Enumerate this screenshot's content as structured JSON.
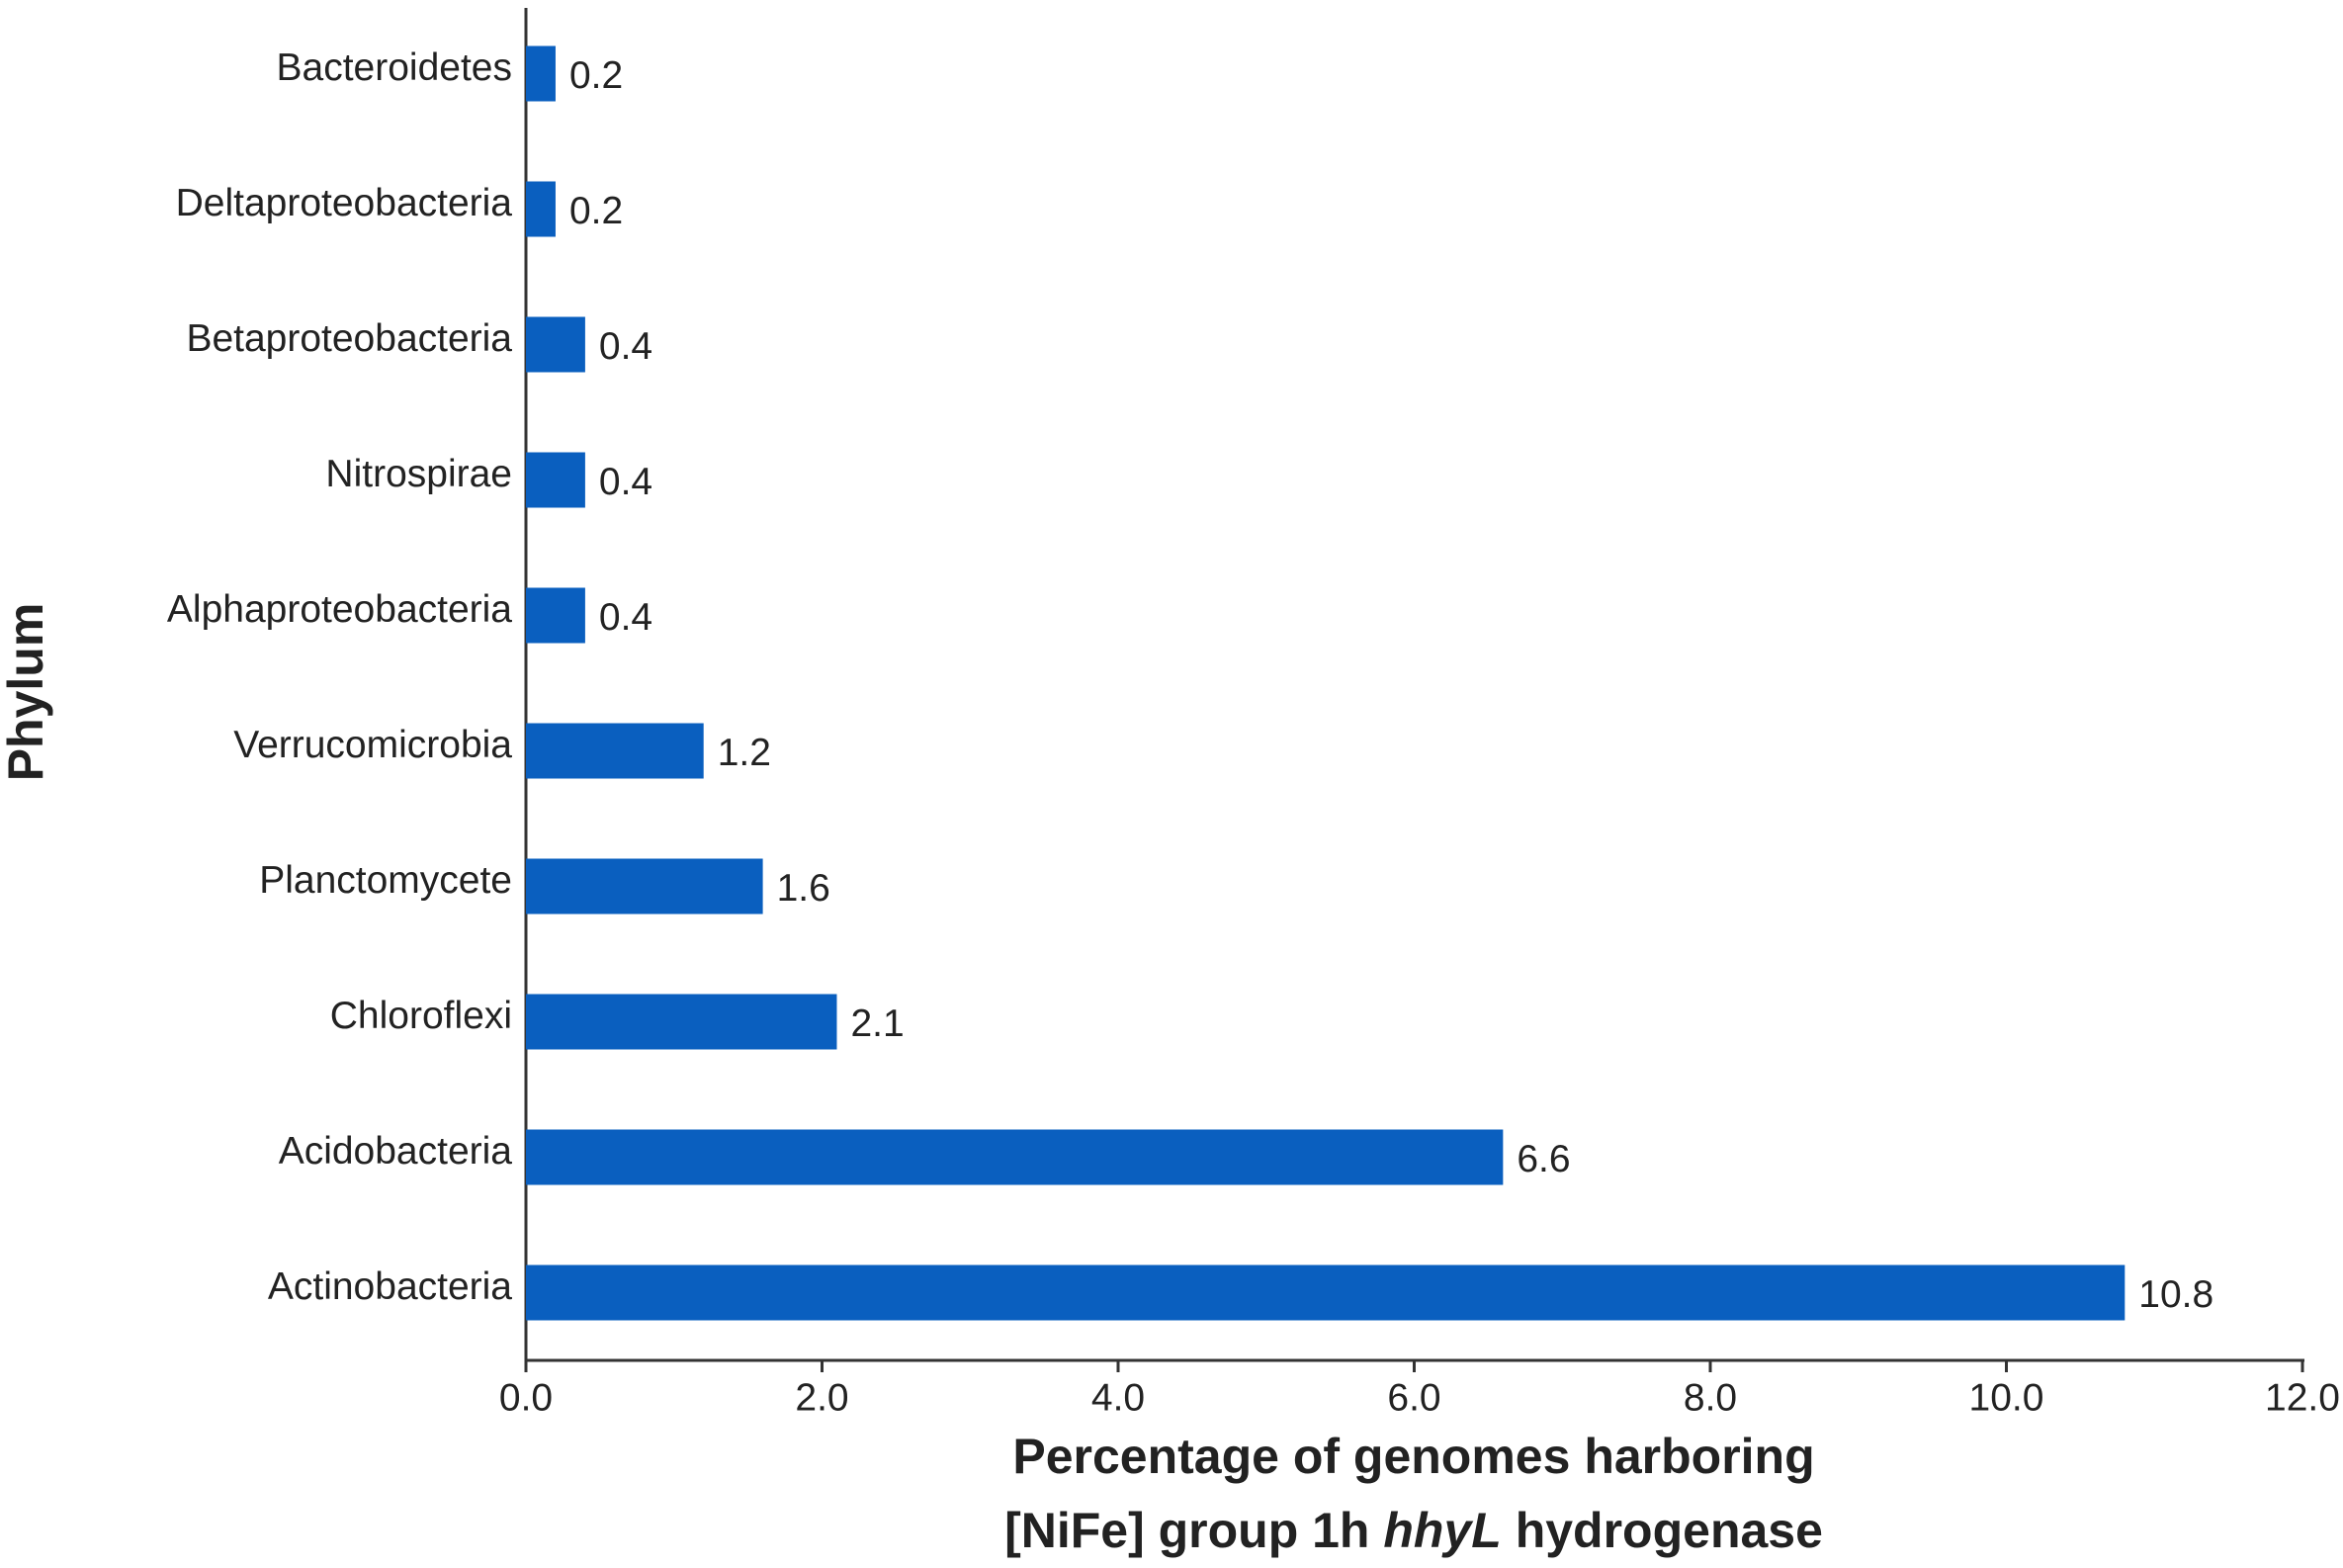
{
  "chart_data": {
    "type": "hbar",
    "y_label": "Phylum",
    "x_label": {
      "line1": "Percentage of genomes harboring",
      "line2": {
        "before": "[NiFe] group 1h ",
        "italic": "hhyL",
        "after": " hydrogenase"
      }
    },
    "categories": [
      "Bacteroidetes",
      "Deltaproteobacteria",
      "Betaproteobacteria",
      "Nitrospirae",
      "Alphaproteobacteria",
      "Verrucomicrobia",
      "Planctomycete",
      "Chloroflexi",
      "Acidobacteria",
      "Actinobacteria"
    ],
    "values": [
      0.2,
      0.2,
      0.4,
      0.4,
      0.4,
      1.2,
      1.6,
      2.1,
      6.6,
      10.8
    ],
    "color": "#0a5fbf",
    "xlim": [
      0,
      12
    ],
    "xticks": [
      {
        "value": 0,
        "label": "0.0"
      },
      {
        "value": 2,
        "label": "2.0"
      },
      {
        "value": 4,
        "label": "4.0"
      },
      {
        "value": 6,
        "label": "6.0"
      },
      {
        "value": 8,
        "label": "8.0"
      },
      {
        "value": 10,
        "label": "10.0"
      },
      {
        "value": 12,
        "label": "12.0"
      }
    ]
  }
}
